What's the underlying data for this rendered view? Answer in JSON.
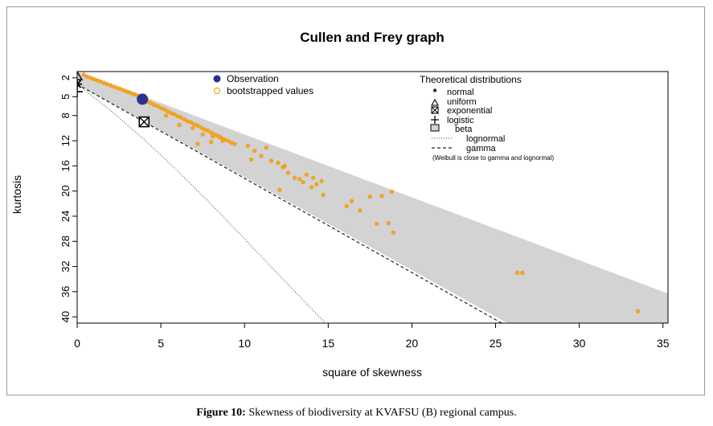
{
  "figure": {
    "caption_label": "Figure 10:",
    "caption_text": " Skewness of biodiversity at KVAFSU (B) regional campus."
  },
  "chart_data": {
    "type": "scatter",
    "title": "Cullen and Frey graph",
    "xlabel": "square of skewness",
    "ylabel": "kurtosis",
    "xlim": [
      0,
      35.3
    ],
    "ylim": [
      1,
      41
    ],
    "y_reversed": true,
    "xticks": [
      0,
      5,
      10,
      15,
      20,
      25,
      30,
      35
    ],
    "yticks": [
      2,
      5,
      8,
      12,
      16,
      20,
      24,
      28,
      32,
      36,
      40
    ],
    "grid": false,
    "legend_left": {
      "placement": "top-center",
      "entries": [
        {
          "label": "Observation",
          "marker": "filled-circle",
          "color": "#2b3390"
        },
        {
          "label": "bootstrapped values",
          "marker": "open-circle",
          "color": "#f5a623"
        }
      ]
    },
    "legend_right": {
      "placement": "top-right",
      "title": "Theoretical distributions",
      "entries": [
        {
          "label": "normal",
          "marker": "asterisk"
        },
        {
          "label": "uniform",
          "marker": "triangle"
        },
        {
          "label": "exponential",
          "marker": "boxed-x"
        },
        {
          "label": "logistic",
          "marker": "plus"
        },
        {
          "label": "beta",
          "marker": "gray-rect"
        },
        {
          "label": "lognormal",
          "marker": "dotted-line"
        },
        {
          "label": "gamma",
          "marker": "dashed-line"
        }
      ],
      "note": "(Weibull is close to gamma and lognormal)"
    },
    "colors": {
      "beta_region": "#d3d3d3",
      "bootstrap": "#f5a623",
      "observation": "#2b3390"
    },
    "observation": {
      "x": 3.9,
      "y": 5.4
    },
    "theoretical_points": {
      "normal": {
        "x": 0,
        "y": 3
      },
      "uniform": {
        "x": 0,
        "y": 1.8
      },
      "exponential": {
        "x": 4,
        "y": 9
      },
      "logistic": {
        "x": 0,
        "y": 4.2
      }
    },
    "gamma_line": [
      [
        0,
        3
      ],
      [
        25.7,
        41.5
      ]
    ],
    "lognormal_line": [
      [
        0,
        3
      ],
      [
        2,
        7.2
      ],
      [
        4,
        11.8
      ],
      [
        6,
        16.8
      ],
      [
        8,
        22.1
      ],
      [
        10,
        27.6
      ],
      [
        12,
        33.2
      ],
      [
        14,
        38.7
      ],
      [
        16,
        44.2
      ]
    ],
    "beta_region": [
      [
        0,
        1
      ],
      [
        35.3,
        36.3
      ],
      [
        35.3,
        41
      ],
      [
        25.7,
        41
      ],
      [
        0,
        3
      ]
    ],
    "bootstrapped": {
      "x": [
        0.4,
        0.6,
        0.8,
        1.0,
        1.2,
        1.4,
        1.6,
        1.8,
        2.0,
        2.2,
        2.4,
        2.6,
        2.8,
        3.0,
        3.2,
        3.4,
        3.6,
        4.2,
        4.4,
        4.6,
        4.8,
        5.0,
        5.2,
        5.4,
        5.6,
        5.8,
        6.0,
        6.2,
        6.4,
        6.6,
        6.8,
        7.0,
        7.2,
        7.4,
        7.6,
        7.8,
        8.0,
        8.2,
        8.4,
        8.6,
        8.8,
        9.0,
        9.2,
        9.4,
        5.3,
        6.1,
        6.9,
        7.5,
        8.1,
        8.7,
        7.2,
        8.0,
        8.5,
        10.2,
        10.6,
        11.0,
        11.3,
        10.4,
        11.6,
        12.0,
        12.3,
        12.6,
        12.1,
        13.0,
        13.3,
        13.7,
        14.1,
        13.5,
        14.0,
        14.6,
        14.7,
        12.4,
        14.3,
        16.1,
        16.4,
        16.9,
        17.5,
        18.2,
        17.9,
        18.6,
        18.9,
        18.8,
        26.3,
        26.6,
        33.5
      ],
      "y": [
        1.5,
        1.8,
        2.0,
        2.2,
        2.4,
        2.6,
        2.8,
        3.0,
        3.2,
        3.4,
        3.6,
        3.8,
        4.0,
        4.2,
        4.4,
        4.6,
        4.8,
        5.8,
        6.0,
        6.3,
        6.5,
        6.8,
        7.0,
        7.3,
        7.6,
        7.8,
        8.1,
        8.3,
        8.6,
        8.9,
        9.1,
        9.4,
        9.6,
        9.9,
        10.2,
        10.4,
        10.7,
        11.0,
        11.2,
        11.5,
        11.8,
        12.0,
        12.3,
        12.5,
        8.0,
        9.5,
        10.0,
        11.0,
        11.3,
        12.0,
        12.5,
        12.2,
        11.4,
        12.8,
        13.6,
        14.4,
        13.1,
        15.0,
        15.2,
        15.5,
        16.2,
        17.1,
        19.8,
        17.9,
        18.1,
        17.4,
        17.9,
        18.6,
        19.4,
        18.4,
        20.6,
        16.0,
        18.9,
        22.4,
        21.6,
        23.1,
        20.9,
        20.8,
        25.2,
        25.1,
        26.6,
        20.1,
        33.0,
        33.0,
        39.1
      ]
    }
  }
}
